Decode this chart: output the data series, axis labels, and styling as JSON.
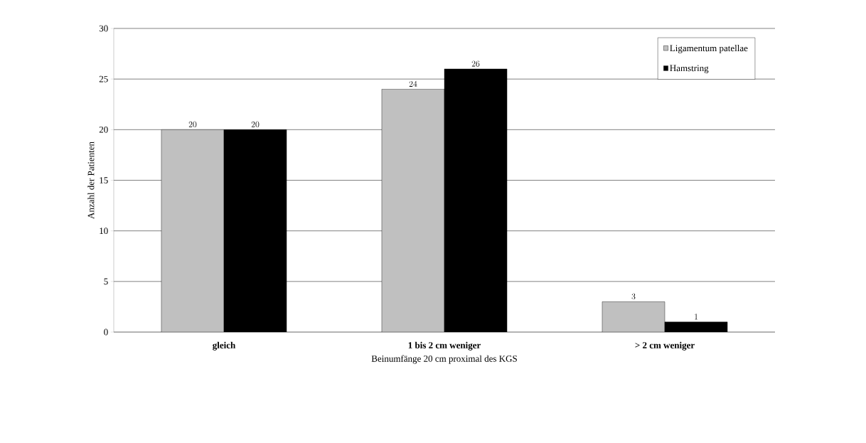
{
  "chart_data": {
    "type": "bar",
    "xlabel": "Beinumfänge 20 cm proximal des KGS",
    "ylabel": "Anzahl der Patienten",
    "categories": [
      "gleich",
      "1 bis 2 cm weniger",
      "> 2 cm weniger"
    ],
    "series": [
      {
        "name": "Ligamentum patellae",
        "color": "#c0c0c0",
        "values": [
          20,
          24,
          3
        ]
      },
      {
        "name": "Hamstring",
        "color": "#000000",
        "values": [
          20,
          26,
          1
        ]
      }
    ],
    "ylim": [
      0,
      30
    ],
    "yticks": [
      0,
      5,
      10,
      15,
      20,
      25,
      30
    ],
    "grid": "y",
    "legend": "top right",
    "data_labels": true
  }
}
